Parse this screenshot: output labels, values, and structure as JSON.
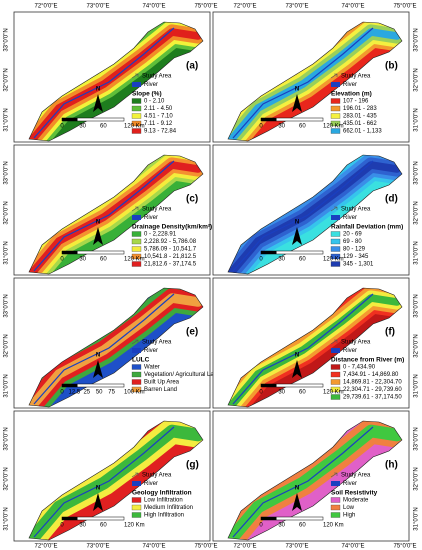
{
  "axes": {
    "lon_labels": [
      "72°0'0\"E",
      "73°0'0\"E",
      "74°0'0\"E",
      "75°0'0\"E"
    ],
    "lat_labels": [
      "33°0'0\"N",
      "32°0'0\"N",
      "31°0'0\"N"
    ]
  },
  "common": {
    "study_area": "Study Area",
    "river": "River",
    "north": "N"
  },
  "panels": [
    {
      "label": "(a)",
      "legend_title": "Slope (%)",
      "scale": [
        "0",
        "30",
        "60",
        "120 Km"
      ],
      "items": [
        {
          "label": "0 - 2.10",
          "color": "#1e7d1e"
        },
        {
          "label": "2.11 - 4.50",
          "color": "#5fbf3a"
        },
        {
          "label": "4.51 - 7.10",
          "color": "#f2f23a"
        },
        {
          "label": "7.11 - 9.12",
          "color": "#f28c28"
        },
        {
          "label": "9.13 - 72.84",
          "color": "#e0201c"
        }
      ]
    },
    {
      "label": "(b)",
      "legend_title": "Elevation (m)",
      "scale": [
        "0",
        "30",
        "60",
        "120 Km"
      ],
      "items": [
        {
          "label": "107 - 196",
          "color": "#e8261c"
        },
        {
          "label": "196.01 - 283",
          "color": "#f29a2e"
        },
        {
          "label": "283.01 - 435",
          "color": "#f4f040"
        },
        {
          "label": "435.01 - 662",
          "color": "#9ad05a"
        },
        {
          "label": "662.01 - 1,133",
          "color": "#2aa8e0"
        }
      ]
    },
    {
      "label": "(c)",
      "legend_title": "Drainage Density(km/km²)",
      "scale": [
        "0",
        "30",
        "60",
        "120 Km"
      ],
      "items": [
        {
          "label": "0 - 2,228.91",
          "color": "#38b038"
        },
        {
          "label": "2,228.92 - 5,786.08",
          "color": "#a8d84a"
        },
        {
          "label": "5,786.09 - 10,541.7",
          "color": "#f4ec3c"
        },
        {
          "label": "10,541.8 - 21,812.5",
          "color": "#f49030"
        },
        {
          "label": "21,812.6 - 37,174.5",
          "color": "#e02020"
        }
      ]
    },
    {
      "label": "(d)",
      "legend_title": "Rainfall Deviation (mm)",
      "scale": [
        "0",
        "30",
        "60",
        "120 Km"
      ],
      "items": [
        {
          "label": "20 - 69",
          "color": "#3ae0e0"
        },
        {
          "label": "69 - 80",
          "color": "#36c4ec"
        },
        {
          "label": "80 - 129",
          "color": "#3a8ee8"
        },
        {
          "label": "129 - 345",
          "color": "#2e62d0"
        },
        {
          "label": "345 - 1,301",
          "color": "#1e3cb0"
        }
      ]
    },
    {
      "label": "(e)",
      "legend_title": "LULC",
      "scale": [
        "0",
        "12.5",
        "25",
        "50",
        "75",
        "100 Km"
      ],
      "items": [
        {
          "label": "Water",
          "color": "#1e50c8"
        },
        {
          "label": "Vegetation/ Agricultural Land",
          "color": "#3ea83e"
        },
        {
          "label": "Built Up Area",
          "color": "#e02020"
        },
        {
          "label": "Barren Land",
          "color": "#f0a040"
        }
      ]
    },
    {
      "label": "(f)",
      "legend_title": "Distance from River (m)",
      "scale": [
        "0",
        "30",
        "60",
        "120 Km"
      ],
      "items": [
        {
          "label": "0 - 7,434.90",
          "color": "#c01818"
        },
        {
          "label": "7,434.91 - 14,869.80",
          "color": "#f03020"
        },
        {
          "label": "14,869.81 - 22,304.70",
          "color": "#f49a30"
        },
        {
          "label": "22,304.71 - 29,739.60",
          "color": "#f4ec40"
        },
        {
          "label": "29,739.61 - 37,174.50",
          "color": "#3cb83c"
        }
      ]
    },
    {
      "label": "(g)",
      "legend_title": "Geology Infiltration",
      "scale": [
        "0",
        "30",
        "60",
        "120 Km"
      ],
      "items": [
        {
          "label": "Low Infiltration",
          "color": "#e02020"
        },
        {
          "label": "Medium Infiltration",
          "color": "#f4ec40"
        },
        {
          "label": "High Infiltration",
          "color": "#3cb83c"
        }
      ]
    },
    {
      "label": "(h)",
      "legend_title": "Soil Resistivity",
      "scale": [
        "0",
        "30",
        "60",
        "120 Km"
      ],
      "items": [
        {
          "label": "Moderate",
          "color": "#e060c8"
        },
        {
          "label": "Low",
          "color": "#f08040"
        },
        {
          "label": "High",
          "color": "#40c840"
        }
      ]
    }
  ]
}
